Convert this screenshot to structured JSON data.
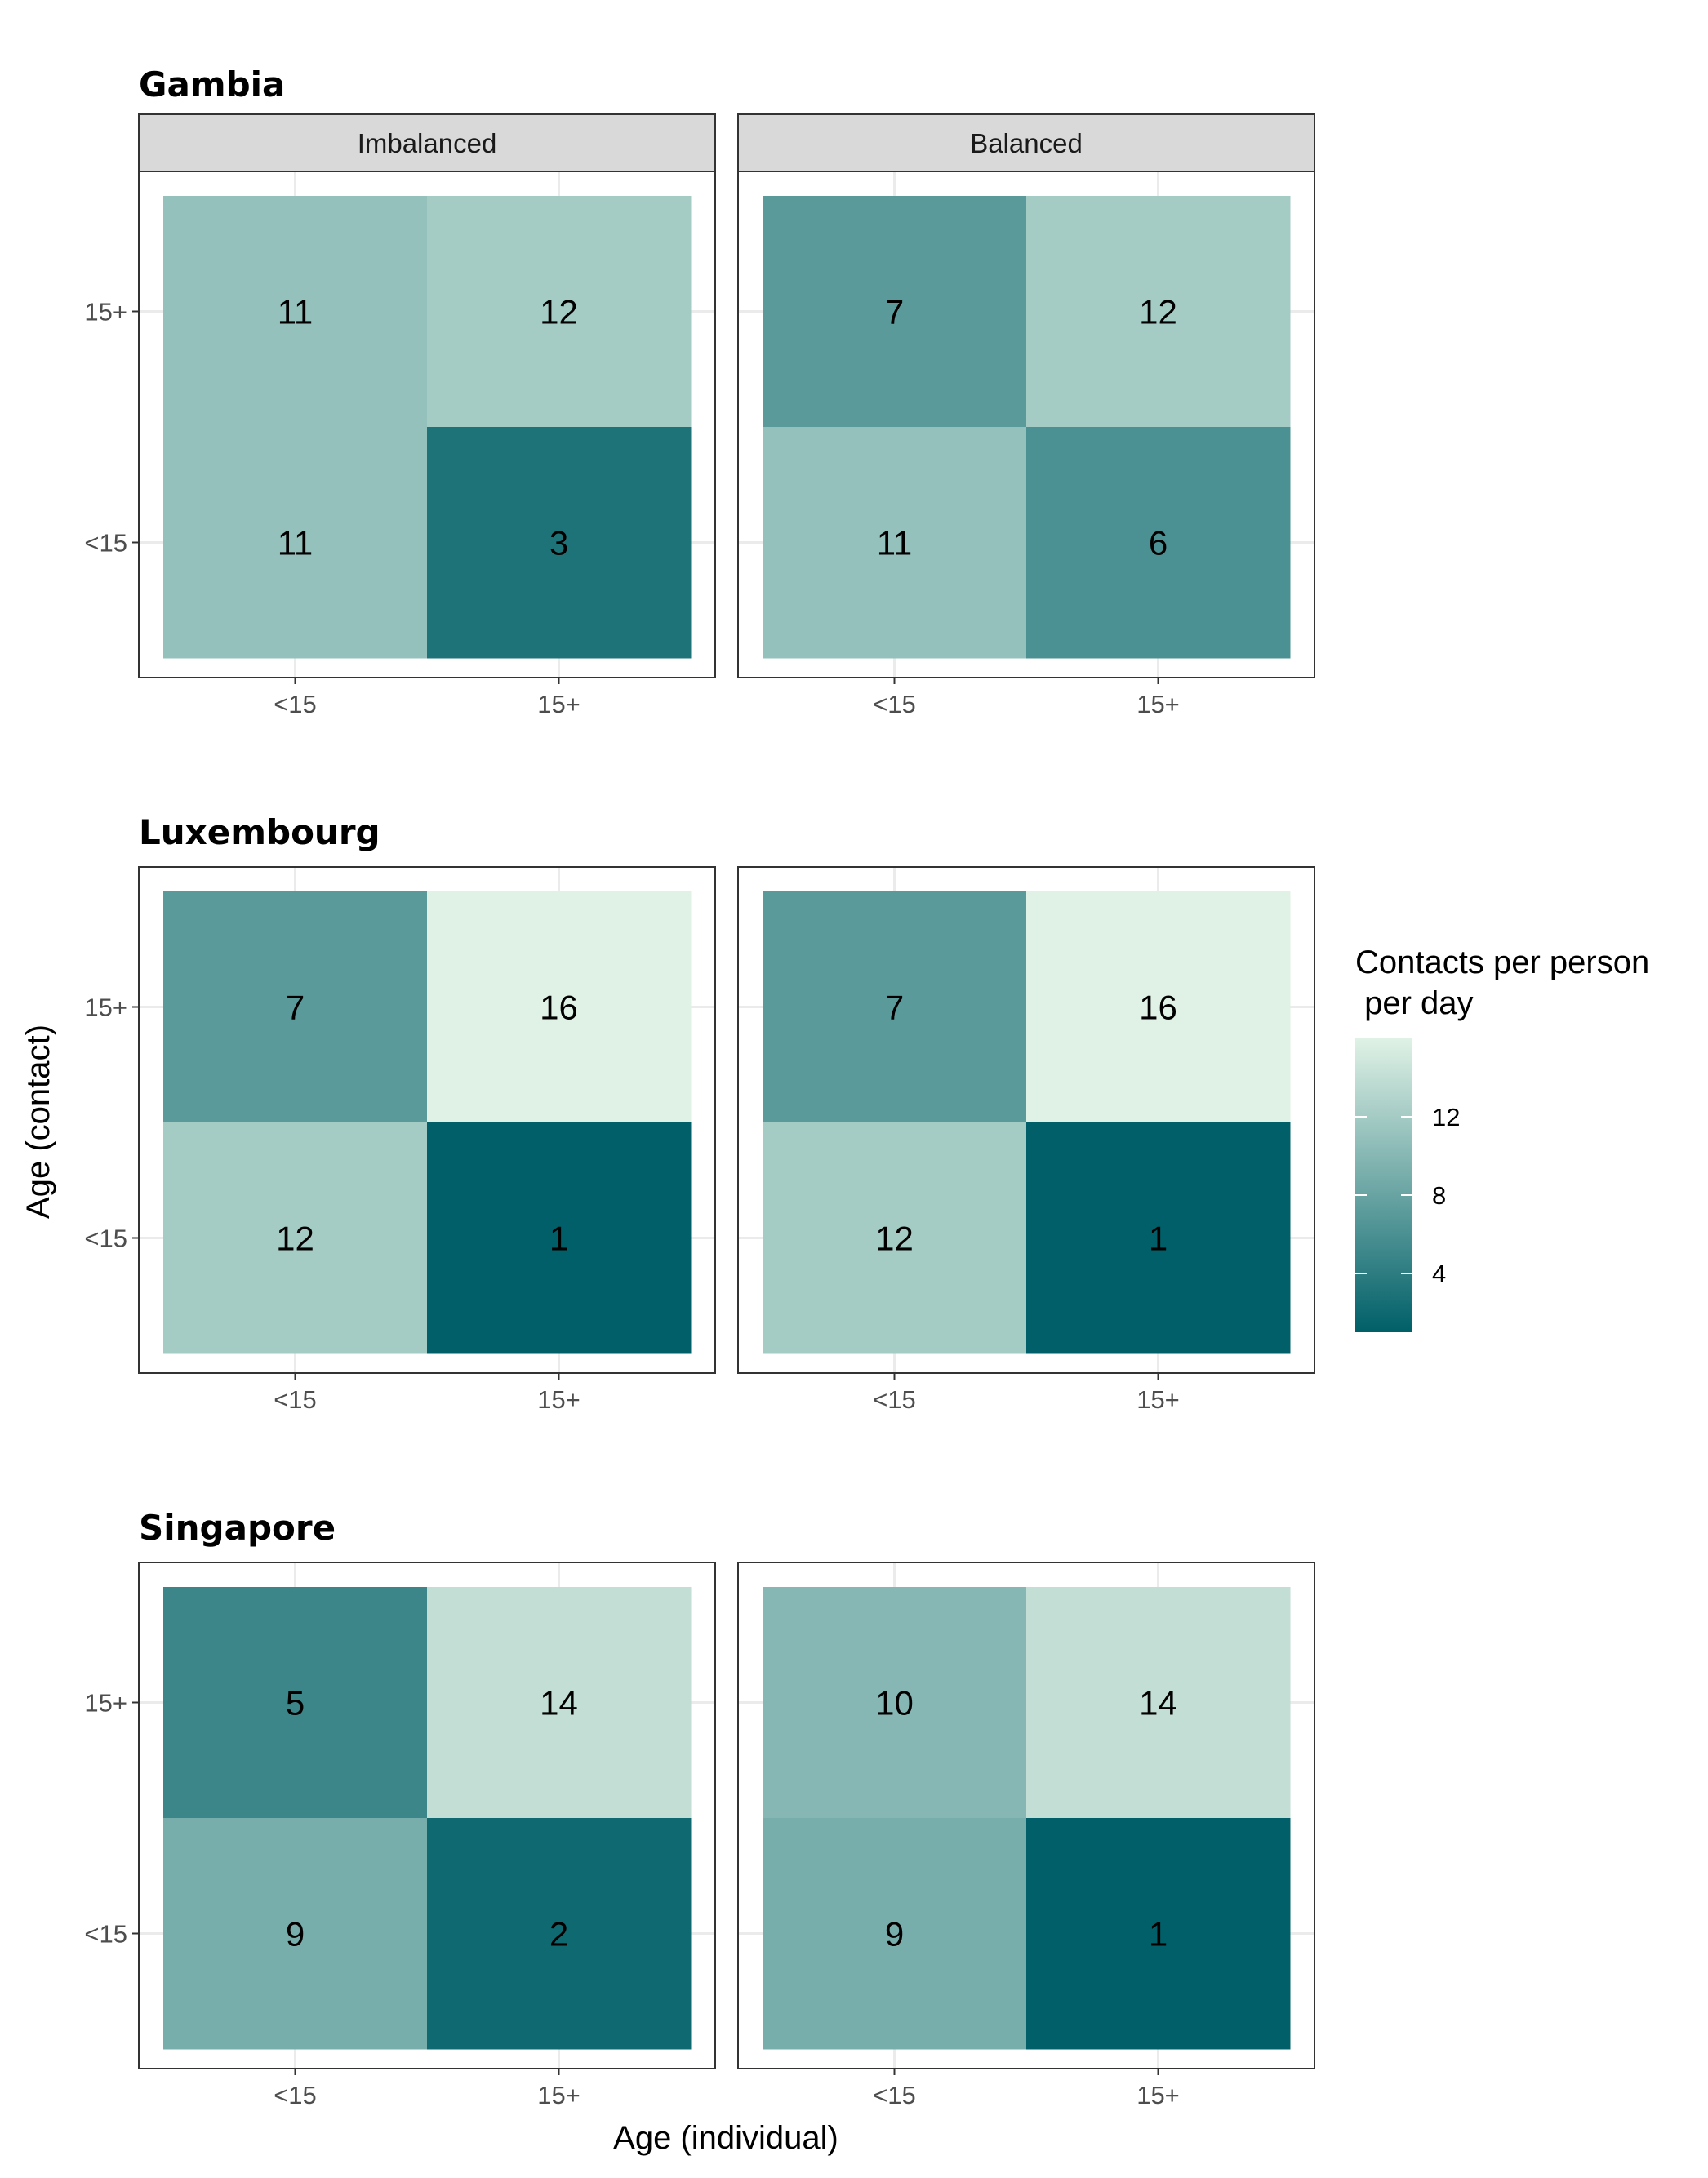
{
  "chart_data": {
    "type": "heatmap",
    "facet_columns": [
      "Imbalanced",
      "Balanced"
    ],
    "x_categories": [
      "<15",
      "15+"
    ],
    "y_categories": [
      "<15",
      "15+"
    ],
    "xlabel": "Age (individual)",
    "ylabel": "Age (contact)",
    "legend": {
      "title_lines": [
        "Contacts per person",
        " per day"
      ],
      "ticks": [
        4,
        8,
        12
      ],
      "range": [
        1,
        16
      ],
      "color_low": "#005f68",
      "color_high": "#e0f2e6",
      "placement": "right"
    },
    "panels": [
      {
        "country": "Gambia",
        "facets": [
          {
            "name": "Imbalanced",
            "cells": [
              {
                "x": "<15",
                "y": "15+",
                "value": 11
              },
              {
                "x": "15+",
                "y": "15+",
                "value": 12
              },
              {
                "x": "<15",
                "y": "<15",
                "value": 11
              },
              {
                "x": "15+",
                "y": "<15",
                "value": 3
              }
            ]
          },
          {
            "name": "Balanced",
            "cells": [
              {
                "x": "<15",
                "y": "15+",
                "value": 7
              },
              {
                "x": "15+",
                "y": "15+",
                "value": 12
              },
              {
                "x": "<15",
                "y": "<15",
                "value": 11
              },
              {
                "x": "15+",
                "y": "<15",
                "value": 6
              }
            ]
          }
        ]
      },
      {
        "country": "Luxembourg",
        "facets": [
          {
            "name": "Imbalanced",
            "cells": [
              {
                "x": "<15",
                "y": "15+",
                "value": 7
              },
              {
                "x": "15+",
                "y": "15+",
                "value": 16
              },
              {
                "x": "<15",
                "y": "<15",
                "value": 12
              },
              {
                "x": "15+",
                "y": "<15",
                "value": 1
              }
            ]
          },
          {
            "name": "Balanced",
            "cells": [
              {
                "x": "<15",
                "y": "15+",
                "value": 7
              },
              {
                "x": "15+",
                "y": "15+",
                "value": 16
              },
              {
                "x": "<15",
                "y": "<15",
                "value": 12
              },
              {
                "x": "15+",
                "y": "<15",
                "value": 1
              }
            ]
          }
        ]
      },
      {
        "country": "Singapore",
        "facets": [
          {
            "name": "Imbalanced",
            "cells": [
              {
                "x": "<15",
                "y": "15+",
                "value": 5
              },
              {
                "x": "15+",
                "y": "15+",
                "value": 14
              },
              {
                "x": "<15",
                "y": "<15",
                "value": 9
              },
              {
                "x": "15+",
                "y": "<15",
                "value": 2
              }
            ]
          },
          {
            "name": "Balanced",
            "cells": [
              {
                "x": "<15",
                "y": "15+",
                "value": 10
              },
              {
                "x": "15+",
                "y": "15+",
                "value": 14
              },
              {
                "x": "<15",
                "y": "<15",
                "value": 9
              },
              {
                "x": "15+",
                "y": "<15",
                "value": 1
              }
            ]
          }
        ]
      }
    ]
  }
}
